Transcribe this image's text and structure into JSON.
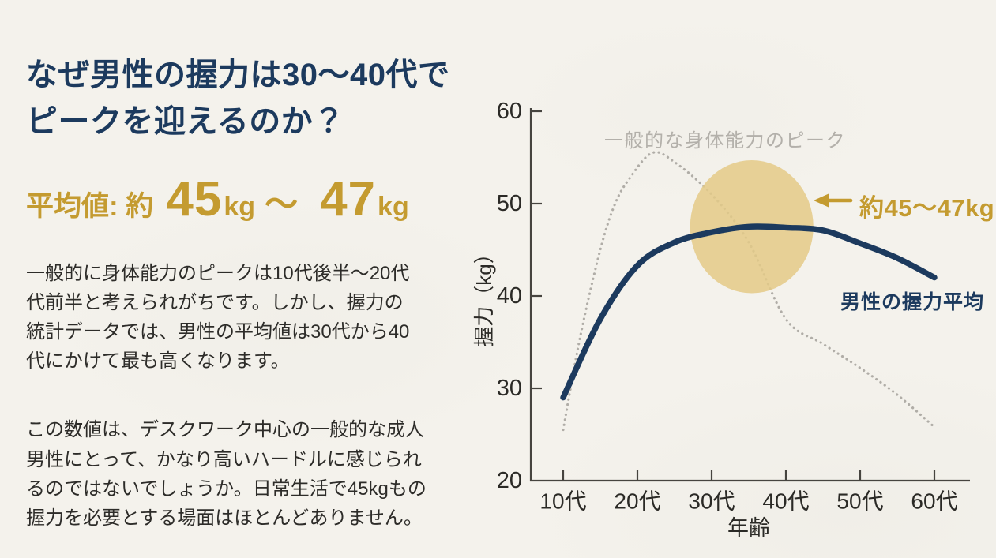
{
  "colors": {
    "navy": "#1c3a5e",
    "gold": "#c49b30",
    "body_text": "#2d2c29",
    "gray_label": "#b3b0aa",
    "axis": "#46443f",
    "tick_text": "#2b2a26",
    "background": "#f4f2ec",
    "highlight_circle": "#e4ca87"
  },
  "header": {
    "title_line1": "なぜ男性の握力は30〜40代で",
    "title_line2": "ピークを迎えるのか？"
  },
  "stat": {
    "prefix": "平均値: 約",
    "value1": "45",
    "unit1": "kg",
    "separator": "〜",
    "value2": "47",
    "unit2": "kg"
  },
  "paragraphs": {
    "p1_lines": [
      "一般的に身体能力のピークは10代後半〜20代",
      "代前半と考えられがちです。しかし、握力の",
      "統計データでは、男性の平均値は30代から40",
      "代にかけて最も高くなります。"
    ],
    "p2_lines": [
      "この数値は、デスクワーク中心の一般的な成人",
      "男性にとって、かなり高いハードルに感じられ",
      "るのではないでしょうか。日常生活で45kgもの",
      "握力を必要とする場面はほとんどありません。"
    ]
  },
  "chart_data": {
    "type": "line",
    "xlabel": "年齢",
    "ylabel": "握力（kg）",
    "ylim": [
      20,
      60
    ],
    "grid": false,
    "x_ticks": [
      {
        "v": 10,
        "label": "10代"
      },
      {
        "v": 20,
        "label": "20代"
      },
      {
        "v": 30,
        "label": "30代"
      },
      {
        "v": 40,
        "label": "40代"
      },
      {
        "v": 50,
        "label": "50代"
      },
      {
        "v": 60,
        "label": "60代"
      }
    ],
    "y_ticks": [
      20,
      30,
      40,
      50,
      60
    ],
    "series": [
      {
        "name": "一般的な身体能力のピーク",
        "style": "dotted",
        "color": "#b0ada7",
        "points": [
          [
            10,
            25.5
          ],
          [
            12.3,
            35.6
          ],
          [
            15,
            45
          ],
          [
            17,
            50
          ],
          [
            19,
            52.8
          ],
          [
            22,
            55.5
          ],
          [
            25,
            54.5
          ],
          [
            30,
            51
          ],
          [
            35,
            45.8
          ],
          [
            40,
            37.5
          ],
          [
            45,
            34.8
          ],
          [
            50,
            32.2
          ],
          [
            55,
            29.3
          ],
          [
            60,
            25.8
          ]
        ]
      },
      {
        "name": "男性の握力平均",
        "style": "solid",
        "color": "#1c3a5e",
        "points": [
          [
            10,
            29
          ],
          [
            15,
            37.5
          ],
          [
            20,
            43.3
          ],
          [
            25,
            45.8
          ],
          [
            30,
            46.9
          ],
          [
            35,
            47.5
          ],
          [
            40,
            47.4
          ],
          [
            45,
            47.1
          ],
          [
            50,
            45.7
          ],
          [
            55,
            44.1
          ],
          [
            60,
            42
          ]
        ]
      }
    ],
    "highlight_circle": {
      "center_age": 35.4,
      "center_kg": 47.5,
      "radius_years": 8.3,
      "radius_kg": 7.2,
      "color": "#e4ca87",
      "opacity": 0.85
    },
    "peak_label": {
      "text": "一般的な身体能力のピーク",
      "color": "#b3b0aa"
    },
    "annotation": {
      "text": "約45〜47kg",
      "color": "#c49b30",
      "arrow": "left"
    },
    "series_label": {
      "text": "男性の握力平均",
      "color": "#1c3a5e"
    }
  }
}
